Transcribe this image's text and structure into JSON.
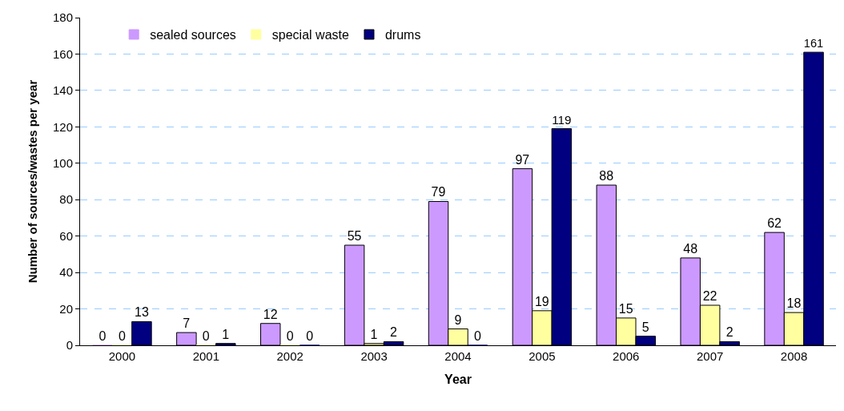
{
  "chart_data": {
    "type": "bar",
    "xlabel": "Year",
    "ylabel": "Number of sources/wastes per year",
    "categories": [
      "2000",
      "2001",
      "2002",
      "2003",
      "2004",
      "2005",
      "2006",
      "2007",
      "2008"
    ],
    "series": [
      {
        "name": "sealed sources",
        "color": "#cc99ff",
        "values": [
          0,
          7,
          12,
          55,
          79,
          97,
          88,
          48,
          62
        ]
      },
      {
        "name": "special waste",
        "color": "#ffffa0",
        "values": [
          0,
          0,
          0,
          1,
          9,
          19,
          15,
          22,
          18
        ]
      },
      {
        "name": "drums",
        "color": "#000080",
        "values": [
          13,
          1,
          0,
          2,
          0,
          119,
          5,
          2,
          161
        ]
      }
    ],
    "ylim": [
      0,
      180
    ],
    "yticks": [
      0,
      20,
      40,
      60,
      80,
      100,
      120,
      140,
      160,
      180
    ],
    "grid": "y",
    "legend": "top left",
    "data_labels": true
  }
}
